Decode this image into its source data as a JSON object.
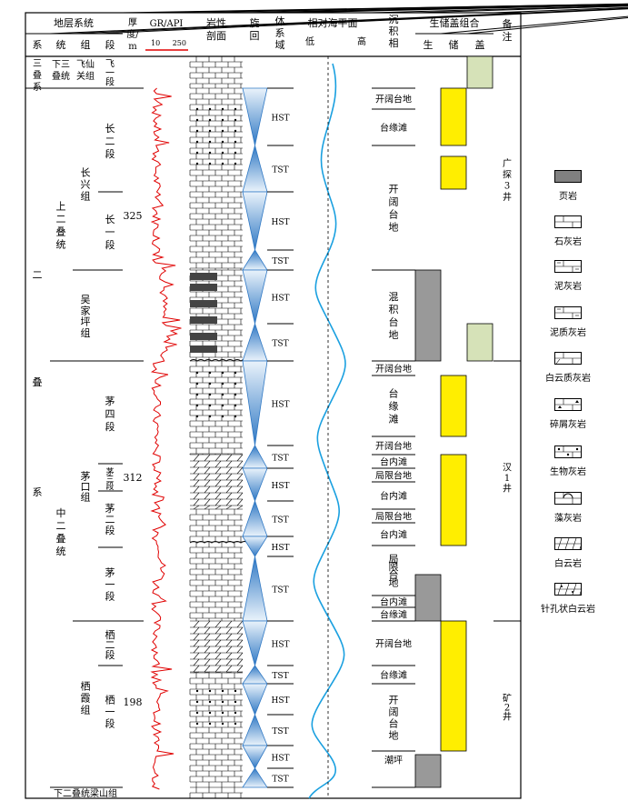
{
  "header": {
    "strat_system": "地层系统",
    "system": "系",
    "series": "统",
    "group": "组",
    "member": "段",
    "thickness": "厚度/m",
    "gr_title": "GR/API",
    "gr_min": "10",
    "gr_max": "250",
    "lithology": "岩性剖面",
    "cycle": "旋回",
    "systems_tract": "体系域",
    "sea_level": "相对海平面",
    "low": "低",
    "high": "高",
    "facies": "沉积相",
    "assemblage": "生储盖组合",
    "source": "生",
    "reservoir": "储",
    "cap": "盖",
    "remarks": "备注"
  },
  "strata": {
    "sys_triassic": "三叠系",
    "sys_permian": "二叠系",
    "ser_lower_triassic": "下三叠统",
    "ser_upper_permian": "上二叠统",
    "ser_middle_permian": "中二叠统",
    "ser_lower_permian_liangshan": "下二叠统梁山组",
    "grp_feixianguan": "飞仙关组",
    "grp_changxing": "长兴组",
    "grp_wujiaping": "吴家坪组",
    "grp_maokou": "茅口组",
    "grp_qixia": "栖霞组",
    "mem_fei1": "飞一段",
    "mem_chang2": "长二段",
    "mem_chang1": "长一段",
    "mem_mao4": "茅四段",
    "mem_mao3": "茅三段",
    "mem_mao2": "茅二段",
    "mem_mao1": "茅一段",
    "mem_qi2": "栖二段",
    "mem_qi1": "栖一段",
    "thick_1": "325",
    "thick_2": "312",
    "thick_3": "198"
  },
  "tracts": [
    "HST",
    "TST",
    "HST",
    "TST",
    "HST",
    "TST",
    "HST",
    "TST",
    "HST",
    "TST",
    "HST",
    "TST",
    "HST",
    "TST",
    "HST",
    "TST",
    "HST",
    "TST"
  ],
  "facies": [
    "开阔台地",
    "台缘滩",
    "开阔台地",
    "混积台地",
    "开阔台地",
    "台缘滩",
    "开阔台地",
    "台内滩",
    "局限台地",
    "台内滩",
    "局限台地",
    "台内滩",
    "局限台地",
    "台内滩",
    "台缘滩",
    "开阔台地",
    "台缘滩",
    "开阔台地",
    "潮坪"
  ],
  "remarks": [
    "广探3井",
    "汉1井",
    "矿2井"
  ],
  "legend": [
    {
      "name": "shale",
      "label": "页岩"
    },
    {
      "name": "limestone",
      "label": "石灰岩"
    },
    {
      "name": "marl",
      "label": "泥灰岩"
    },
    {
      "name": "argillaceous-limestone",
      "label": "泥质灰岩"
    },
    {
      "name": "dolomitic-limestone",
      "label": "白云质灰岩"
    },
    {
      "name": "clastic-limestone",
      "label": "碎屑灰岩"
    },
    {
      "name": "bioclastic-limestone",
      "label": "生物灰岩"
    },
    {
      "name": "algal-limestone",
      "label": "藻灰岩"
    },
    {
      "name": "dolomite",
      "label": "白云岩"
    },
    {
      "name": "pinhole-dolomite",
      "label": "针孔状白云岩"
    }
  ],
  "colors": {
    "gr_curve": "#e00000",
    "sea_curve": "#1aa0e0",
    "reservoir": "#ffee00",
    "cap": "#d6e2b8",
    "source": "#999999",
    "cycle": "#4a8cd0"
  }
}
